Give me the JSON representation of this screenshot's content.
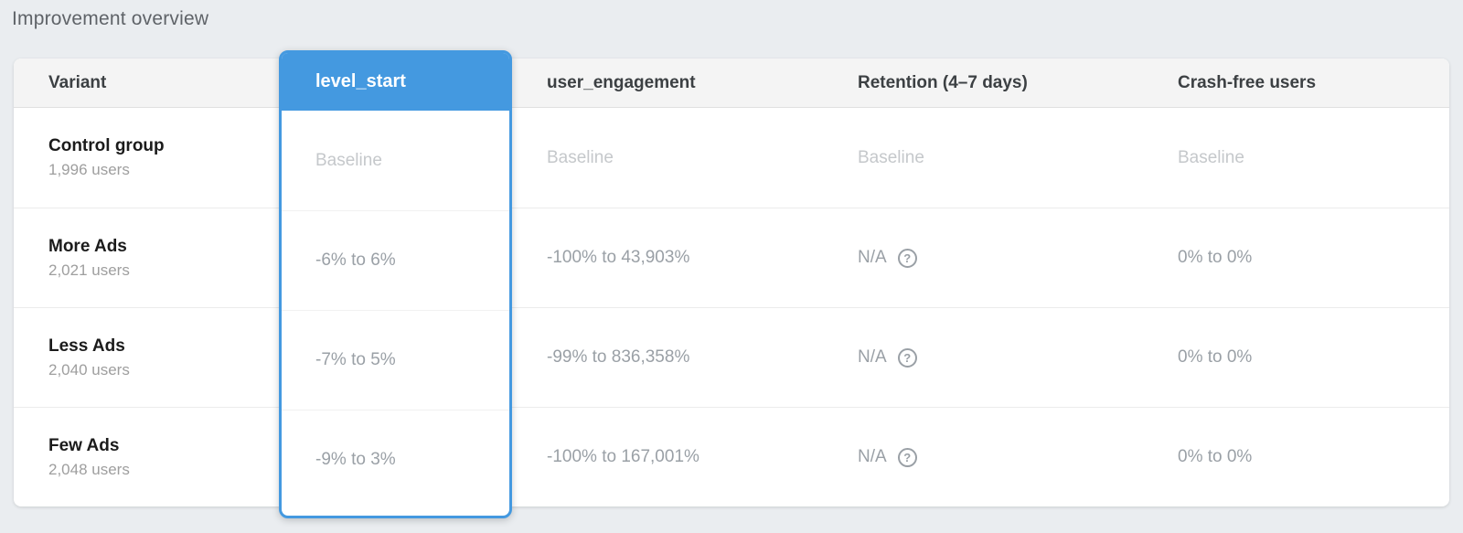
{
  "page": {
    "title": "Improvement overview",
    "background_color": "#eaedf0",
    "accent_color": "#4499e0"
  },
  "table": {
    "columns": [
      {
        "id": "variant",
        "label": "Variant",
        "selected": false
      },
      {
        "id": "level_start",
        "label": "level_start",
        "selected": true
      },
      {
        "id": "user_engagement",
        "label": "user_engagement",
        "selected": false
      },
      {
        "id": "retention",
        "label": "Retention (4–7 days)",
        "selected": false
      },
      {
        "id": "crash_free",
        "label": "Crash-free users",
        "selected": false
      }
    ],
    "help_glyph": "?",
    "rows": [
      {
        "variant": "Control group",
        "users": "1,996 users",
        "level_start": "Baseline",
        "user_engagement": "Baseline",
        "retention": "Baseline",
        "crash_free": "Baseline",
        "is_baseline": true
      },
      {
        "variant": "More Ads",
        "users": "2,021 users",
        "level_start": "-6% to 6%",
        "user_engagement": "-100% to 43,903%",
        "retention": "N/A",
        "crash_free": "0% to 0%",
        "is_baseline": false
      },
      {
        "variant": "Less Ads",
        "users": "2,040 users",
        "level_start": "-7% to 5%",
        "user_engagement": "-99% to 836,358%",
        "retention": "N/A",
        "crash_free": "0% to 0%",
        "is_baseline": false
      },
      {
        "variant": "Few Ads",
        "users": "2,048 users",
        "level_start": "-9% to 3%",
        "user_engagement": "-100% to 167,001%",
        "retention": "N/A",
        "crash_free": "0% to 0%",
        "is_baseline": false
      }
    ]
  }
}
